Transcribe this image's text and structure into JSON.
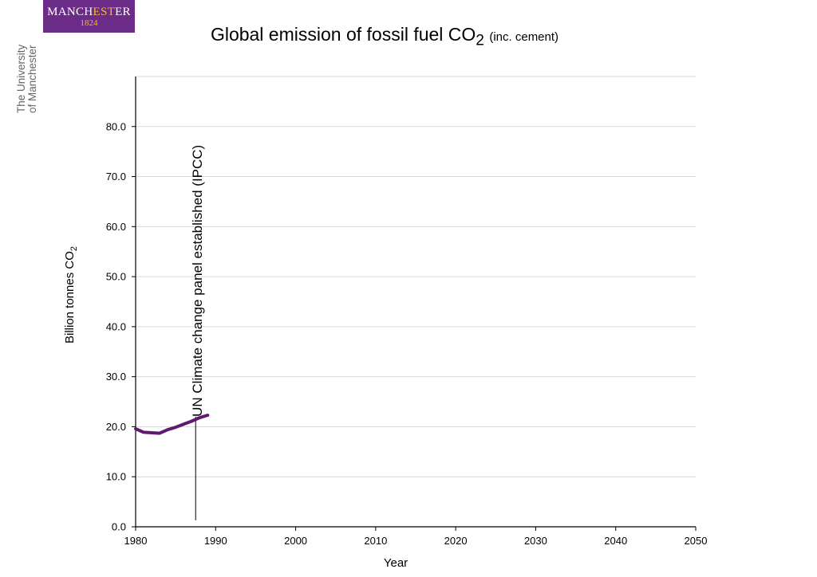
{
  "branding": {
    "logo_text_a": "MANCH",
    "logo_text_b": "EST",
    "logo_text_c": "ER",
    "logo_year": "1824",
    "side_line1": "The University",
    "side_line2": "of Manchester",
    "brand_color": "#6b2c87",
    "accent_color": "#f2b63a"
  },
  "chart_data": {
    "type": "line",
    "title": "Global emission of fossil fuel CO",
    "title_subscript": "2",
    "title_suffix": "(inc. cement)",
    "xlabel": "Year",
    "ylabel": "Billion tonnes CO",
    "ylabel_subscript": "2",
    "xlim": [
      1980,
      2050
    ],
    "ylim": [
      0,
      90
    ],
    "xticks": [
      1980,
      1990,
      2000,
      2010,
      2020,
      2030,
      2040,
      2050
    ],
    "xtick_labels": [
      "1980",
      "1990",
      "2000",
      "2010",
      "2020",
      "2030",
      "2040",
      "2050"
    ],
    "yticks": [
      0,
      10,
      20,
      30,
      40,
      50,
      60,
      70,
      80
    ],
    "ytick_labels": [
      "0.0",
      "10.0",
      "20.0",
      "30.0",
      "40.0",
      "50.0",
      "60.0",
      "70.0",
      "80.0"
    ],
    "grid": "horizontal",
    "line_color": "#5e1a6e",
    "series": [
      {
        "x": [
          1980,
          1981,
          1982,
          1983,
          1984,
          1985,
          1986,
          1987,
          1988,
          1989
        ],
        "values": [
          19.6,
          18.9,
          18.8,
          18.7,
          19.4,
          19.9,
          20.5,
          21.1,
          21.8,
          22.3
        ]
      }
    ],
    "annotations": [
      {
        "x": 1987.5,
        "y_start": 1.3,
        "y_end": 22,
        "text": "UN Climate change panel established (IPCC)"
      }
    ]
  }
}
